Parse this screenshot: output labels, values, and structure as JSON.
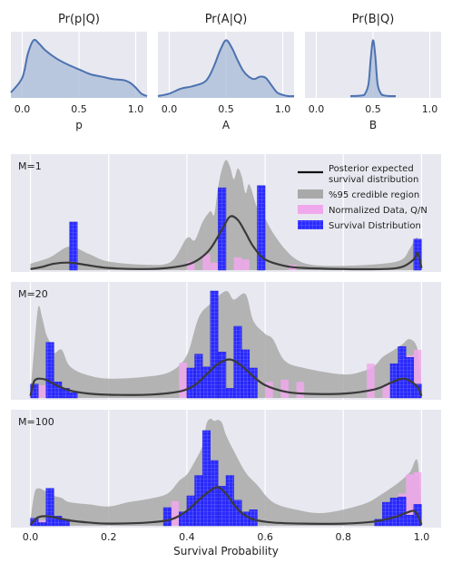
{
  "figure": {
    "colors": {
      "panel_bg": "#e8e8f0",
      "grid": "#ffffff",
      "density_line": "#4c72b0",
      "density_fill": "#a9bcd8",
      "ci_fill": "#a9a9a9",
      "mean_line": "#3a3a3a",
      "hist_blue": "#2a2aff",
      "hist_pink": "#f0a8ec"
    },
    "legend": {
      "entries": [
        {
          "line1": "Posterior expected",
          "line2": "survival distribution",
          "kind": "line"
        },
        {
          "line1": "%95 credible region",
          "line2": "",
          "kind": "ci"
        },
        {
          "line1": "Normalized Data, Q/N",
          "line2": "",
          "kind": "pink"
        },
        {
          "line1": "Survival Distribution",
          "line2": "",
          "kind": "blue"
        }
      ]
    },
    "xlabel": "Survival Probability"
  },
  "chart_data": [
    {
      "type": "area",
      "title": "Pr(p|Q)",
      "xlabel": "p",
      "xlim": [
        -0.1,
        1.1
      ],
      "ticks": [
        0.0,
        0.5,
        1.0
      ],
      "tick_labels": [
        "0.0",
        "0.5",
        "1.0"
      ],
      "grid": true,
      "x": [
        -0.1,
        0.0,
        0.05,
        0.1,
        0.15,
        0.2,
        0.3,
        0.4,
        0.5,
        0.6,
        0.7,
        0.8,
        0.9,
        0.95,
        1.0,
        1.05,
        1.1
      ],
      "y": [
        0.06,
        0.3,
        0.7,
        0.92,
        0.86,
        0.76,
        0.62,
        0.52,
        0.44,
        0.36,
        0.32,
        0.28,
        0.26,
        0.22,
        0.14,
        0.04,
        0.0
      ]
    },
    {
      "type": "area",
      "title": "Pr(A|Q)",
      "xlabel": "A",
      "xlim": [
        -0.1,
        1.1
      ],
      "ticks": [
        0.0,
        0.5,
        1.0
      ],
      "tick_labels": [
        "0.0",
        "0.5",
        "1.0"
      ],
      "grid": true,
      "x": [
        -0.1,
        0.0,
        0.1,
        0.2,
        0.3,
        0.35,
        0.4,
        0.45,
        0.5,
        0.55,
        0.6,
        0.65,
        0.7,
        0.75,
        0.8,
        0.85,
        0.9,
        0.95,
        1.0,
        1.05,
        1.1
      ],
      "y": [
        0.0,
        0.04,
        0.12,
        0.16,
        0.22,
        0.32,
        0.52,
        0.76,
        0.92,
        0.8,
        0.6,
        0.42,
        0.32,
        0.28,
        0.32,
        0.3,
        0.18,
        0.06,
        0.02,
        0.0,
        0.0
      ]
    },
    {
      "type": "area",
      "title": "Pr(B|Q)",
      "xlabel": "B",
      "xlim": [
        -0.1,
        1.1
      ],
      "ticks": [
        0.0,
        0.5,
        1.0
      ],
      "tick_labels": [
        "0.0",
        "0.5",
        "1.0"
      ],
      "grid": true,
      "x": [
        0.3,
        0.4,
        0.43,
        0.46,
        0.48,
        0.5,
        0.52,
        0.54,
        0.57,
        0.6,
        0.65,
        0.7
      ],
      "y": [
        0.0,
        0.01,
        0.04,
        0.2,
        0.62,
        0.92,
        0.66,
        0.2,
        0.04,
        0.01,
        0.0,
        0.0
      ]
    },
    {
      "type": "bar",
      "label": "M=1",
      "xlim": [
        -0.05,
        1.05
      ],
      "ticks": [
        0.0,
        0.2,
        0.4,
        0.6,
        0.8,
        1.0
      ],
      "bin_width": 0.02,
      "survival": [
        [
          0.11,
          0.45
        ],
        [
          0.49,
          0.77
        ],
        [
          0.59,
          0.79
        ],
        [
          0.99,
          0.29
        ]
      ],
      "normalized": [
        [
          0.41,
          0.08
        ],
        [
          0.45,
          0.15
        ],
        [
          0.47,
          0.07
        ],
        [
          0.53,
          0.12
        ],
        [
          0.55,
          0.1
        ],
        [
          0.67,
          0.05
        ],
        [
          0.99,
          0.12
        ]
      ],
      "mean": {
        "x": [
          0.0,
          0.03,
          0.06,
          0.1,
          0.14,
          0.2,
          0.3,
          0.35,
          0.4,
          0.43,
          0.46,
          0.49,
          0.51,
          0.53,
          0.55,
          0.57,
          0.6,
          0.65,
          0.7,
          0.8,
          0.9,
          0.95,
          0.98,
          0.99,
          1.0
        ],
        "y": [
          0.01,
          0.03,
          0.06,
          0.07,
          0.05,
          0.02,
          0.01,
          0.02,
          0.05,
          0.1,
          0.2,
          0.38,
          0.5,
          0.47,
          0.35,
          0.22,
          0.1,
          0.04,
          0.02,
          0.01,
          0.01,
          0.03,
          0.1,
          0.16,
          0.02
        ]
      },
      "ci_upper": {
        "x": [
          0.0,
          0.05,
          0.1,
          0.15,
          0.2,
          0.3,
          0.36,
          0.4,
          0.42,
          0.44,
          0.46,
          0.47,
          0.48,
          0.49,
          0.5,
          0.51,
          0.52,
          0.53,
          0.54,
          0.55,
          0.56,
          0.58,
          0.6,
          0.62,
          0.65,
          0.68,
          0.72,
          0.8,
          0.9,
          0.95,
          0.97,
          0.99,
          1.0
        ],
        "y": [
          0.06,
          0.12,
          0.22,
          0.15,
          0.08,
          0.05,
          0.08,
          0.3,
          0.28,
          0.45,
          0.55,
          0.52,
          0.78,
          0.95,
          1.03,
          0.97,
          0.85,
          0.95,
          0.88,
          0.72,
          0.8,
          0.58,
          0.48,
          0.35,
          0.2,
          0.1,
          0.05,
          0.04,
          0.06,
          0.1,
          0.2,
          0.3,
          0.05
        ]
      }
    },
    {
      "type": "bar",
      "label": "M=20",
      "xlim": [
        -0.05,
        1.05
      ],
      "ticks": [
        0.0,
        0.2,
        0.4,
        0.6,
        0.8,
        1.0
      ],
      "bin_width": 0.02,
      "survival": [
        [
          0.01,
          0.13
        ],
        [
          0.05,
          0.52
        ],
        [
          0.07,
          0.15
        ],
        [
          0.09,
          0.09
        ],
        [
          0.11,
          0.05
        ],
        [
          0.41,
          0.28
        ],
        [
          0.43,
          0.41
        ],
        [
          0.45,
          0.29
        ],
        [
          0.47,
          1.0
        ],
        [
          0.49,
          0.43
        ],
        [
          0.51,
          0.09
        ],
        [
          0.53,
          0.67
        ],
        [
          0.55,
          0.45
        ],
        [
          0.57,
          0.28
        ],
        [
          0.93,
          0.32
        ],
        [
          0.95,
          0.48
        ],
        [
          0.97,
          0.38
        ],
        [
          0.99,
          0.13
        ]
      ],
      "normalized": [
        [
          0.03,
          0.12
        ],
        [
          0.39,
          0.33
        ],
        [
          0.43,
          0.28
        ],
        [
          0.53,
          0.2
        ],
        [
          0.61,
          0.15
        ],
        [
          0.65,
          0.17
        ],
        [
          0.69,
          0.15
        ],
        [
          0.87,
          0.32
        ],
        [
          0.91,
          0.12
        ],
        [
          0.97,
          0.4
        ],
        [
          0.99,
          0.45
        ]
      ],
      "mean": {
        "x": [
          0.0,
          0.005,
          0.01,
          0.02,
          0.04,
          0.06,
          0.1,
          0.15,
          0.2,
          0.3,
          0.38,
          0.42,
          0.45,
          0.48,
          0.51,
          0.54,
          0.57,
          0.6,
          0.65,
          0.7,
          0.8,
          0.88,
          0.92,
          0.95,
          0.97,
          0.99,
          1.0
        ],
        "y": [
          0.02,
          0.1,
          0.16,
          0.18,
          0.17,
          0.13,
          0.07,
          0.04,
          0.03,
          0.03,
          0.06,
          0.12,
          0.22,
          0.32,
          0.36,
          0.3,
          0.2,
          0.12,
          0.06,
          0.04,
          0.04,
          0.08,
          0.14,
          0.18,
          0.16,
          0.1,
          0.02
        ]
      },
      "ci_upper": {
        "x": [
          0.0,
          0.01,
          0.02,
          0.03,
          0.04,
          0.05,
          0.06,
          0.08,
          0.1,
          0.14,
          0.2,
          0.3,
          0.36,
          0.4,
          0.43,
          0.46,
          0.5,
          0.52,
          0.55,
          0.57,
          0.6,
          0.62,
          0.65,
          0.7,
          0.8,
          0.85,
          0.88,
          0.9,
          0.93,
          0.95,
          0.97,
          0.99,
          1.0
        ],
        "y": [
          0.05,
          0.48,
          0.85,
          0.75,
          0.6,
          0.52,
          0.42,
          0.45,
          0.3,
          0.22,
          0.18,
          0.2,
          0.25,
          0.4,
          0.75,
          0.88,
          1.0,
          0.92,
          0.97,
          0.72,
          0.6,
          0.55,
          0.35,
          0.28,
          0.22,
          0.25,
          0.3,
          0.38,
          0.45,
          0.5,
          0.55,
          0.45,
          0.05
        ]
      }
    },
    {
      "type": "bar",
      "label": "M=100",
      "xlim": [
        -0.05,
        1.05
      ],
      "ticks": [
        0.0,
        0.2,
        0.4,
        0.6,
        0.8,
        1.0
      ],
      "ticks_labeled": true,
      "tick_labels": [
        "0.0",
        "0.2",
        "0.4",
        "0.6",
        "0.8",
        "1.0"
      ],
      "bin_width": 0.02,
      "survival": [
        [
          0.01,
          0.07
        ],
        [
          0.03,
          0.03
        ],
        [
          0.05,
          0.35
        ],
        [
          0.07,
          0.09
        ],
        [
          0.09,
          0.06
        ],
        [
          0.35,
          0.17
        ],
        [
          0.39,
          0.13
        ],
        [
          0.41,
          0.28
        ],
        [
          0.43,
          0.47
        ],
        [
          0.45,
          0.89
        ],
        [
          0.47,
          0.61
        ],
        [
          0.49,
          0.37
        ],
        [
          0.51,
          0.47
        ],
        [
          0.53,
          0.24
        ],
        [
          0.55,
          0.13
        ],
        [
          0.57,
          0.15
        ],
        [
          0.89,
          0.06
        ],
        [
          0.91,
          0.22
        ],
        [
          0.93,
          0.26
        ],
        [
          0.95,
          0.27
        ],
        [
          0.97,
          0.1
        ],
        [
          0.99,
          0.2
        ]
      ],
      "normalized": [
        [
          0.03,
          0.05
        ],
        [
          0.37,
          0.23
        ],
        [
          0.41,
          0.22
        ],
        [
          0.95,
          0.3
        ],
        [
          0.97,
          0.48
        ],
        [
          0.99,
          0.5
        ]
      ],
      "mean": {
        "x": [
          0.0,
          0.01,
          0.02,
          0.04,
          0.06,
          0.1,
          0.15,
          0.2,
          0.3,
          0.36,
          0.4,
          0.43,
          0.46,
          0.48,
          0.5,
          0.52,
          0.54,
          0.57,
          0.62,
          0.7,
          0.8,
          0.88,
          0.93,
          0.96,
          0.98,
          0.99,
          1.0
        ],
        "y": [
          0.01,
          0.05,
          0.08,
          0.09,
          0.08,
          0.05,
          0.03,
          0.02,
          0.03,
          0.06,
          0.14,
          0.24,
          0.33,
          0.36,
          0.3,
          0.2,
          0.12,
          0.06,
          0.03,
          0.02,
          0.02,
          0.04,
          0.08,
          0.12,
          0.14,
          0.1,
          0.01
        ]
      },
      "ci_upper": {
        "x": [
          0.0,
          0.01,
          0.02,
          0.04,
          0.06,
          0.08,
          0.1,
          0.15,
          0.2,
          0.25,
          0.3,
          0.35,
          0.38,
          0.4,
          0.42,
          0.44,
          0.45,
          0.46,
          0.47,
          0.48,
          0.49,
          0.5,
          0.52,
          0.55,
          0.58,
          0.62,
          0.68,
          0.75,
          0.85,
          0.9,
          0.94,
          0.97,
          0.99,
          1.0
        ],
        "y": [
          0.05,
          0.3,
          0.35,
          0.32,
          0.28,
          0.26,
          0.22,
          0.2,
          0.18,
          0.22,
          0.25,
          0.3,
          0.42,
          0.48,
          0.6,
          0.75,
          0.95,
          1.0,
          0.98,
          0.99,
          0.96,
          0.85,
          0.7,
          0.5,
          0.38,
          0.22,
          0.15,
          0.12,
          0.2,
          0.3,
          0.4,
          0.5,
          0.6,
          0.05
        ]
      }
    }
  ]
}
